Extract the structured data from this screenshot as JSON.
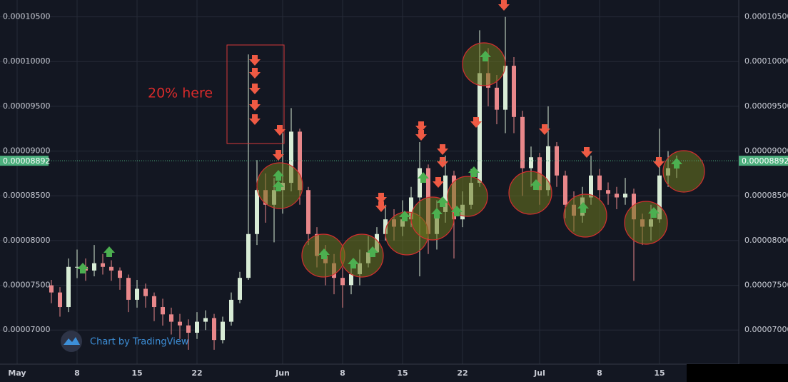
{
  "chart_data": {
    "type": "candlestick",
    "watermark": "Chart by TradingView",
    "annotation": "20% here",
    "x": [
      5,
      6,
      7,
      8,
      9,
      10,
      11,
      12,
      13,
      14,
      15,
      16,
      17,
      18,
      19,
      20,
      21,
      22,
      23,
      24,
      25,
      26,
      27,
      28,
      29,
      30,
      31,
      32,
      33,
      34,
      35,
      36,
      37,
      38,
      39,
      40,
      41,
      42,
      43,
      44,
      45,
      46,
      47,
      48,
      49,
      50,
      51,
      52,
      53,
      54,
      55,
      56,
      57,
      58,
      59,
      60,
      61,
      62,
      63,
      64,
      65,
      66,
      67,
      68,
      69,
      70,
      71,
      72,
      73,
      74,
      75,
      76,
      77,
      78
    ],
    "open": [
      7.5e-05,
      7.42e-05,
      7.257e-05,
      7.706e-05,
      7.706e-05,
      7.665e-05,
      7.747e-05,
      7.706e-05,
      7.665e-05,
      7.583e-05,
      7.338e-05,
      7.461e-05,
      7.379e-05,
      7.257e-05,
      7.175e-05,
      7.093e-05,
      7.052e-05,
      6.97e-05,
      7.093e-05,
      7.134e-05,
      6.889e-05,
      7.093e-05,
      7.338e-05,
      7.583e-05,
      8.073e-05,
      8.564e-05,
      8.4e-05,
      8.564e-05,
      8.645e-05,
      9.217e-05,
      8.564e-05,
      8.073e-05,
      7.828e-05,
      7.747e-05,
      7.583e-05,
      7.502e-05,
      7.624e-05,
      7.747e-05,
      7.869e-05,
      8.073e-05,
      8.237e-05,
      8.155e-05,
      8.237e-05,
      8.482e-05,
      8.809e-05,
      8.073e-05,
      8.319e-05,
      8.727e-05,
      8.237e-05,
      8.4e-05,
      8.645e-05,
      9.871e-05,
      9.708e-05,
      9.462e-05,
      9.953e-05,
      9.381e-05,
      8.809e-05,
      8.931e-05,
      8.564e-05,
      9.054e-05,
      8.727e-05,
      8.4e-05,
      8.278e-05,
      8.482e-05,
      8.727e-05,
      8.564e-05,
      8.523e-05,
      8.482e-05,
      8.523e-05,
      8.237e-05,
      8.155e-05,
      8.237e-05,
      8.727e-05,
      8.809e-05
    ],
    "high": [
      7.56e-05,
      7.48e-05,
      7.8e-05,
      7.9e-05,
      7.8e-05,
      7.95e-05,
      7.85e-05,
      7.78e-05,
      7.7e-05,
      7.62e-05,
      7.56e-05,
      7.52e-05,
      7.42e-05,
      7.35e-05,
      7.25e-05,
      7.18e-05,
      7.12e-05,
      7.2e-05,
      7.22e-05,
      7.18e-05,
      7.15e-05,
      7.42e-05,
      7.65e-05,
      0.0001008,
      8.9e-05,
      8.75e-05,
      8.7e-05,
      9.2e-05,
      9.48e-05,
      9.25e-05,
      8.6e-05,
      8.15e-05,
      7.95e-05,
      7.85e-05,
      7.7e-05,
      7.75e-05,
      7.9e-05,
      8.05e-05,
      8.15e-05,
      8.4e-05,
      8.35e-05,
      8.45e-05,
      8.6e-05,
      9.1e-05,
      8.85e-05,
      8.45e-05,
      8.95e-05,
      8.78e-05,
      8.55e-05,
      8.8e-05,
      0.0001035,
      0.0001015,
      9.85e-05,
      0.000105,
      0.0001005,
      9.45e-05,
      9.05e-05,
      8.98e-05,
      9.5e-05,
      9.1e-05,
      8.78e-05,
      8.55e-05,
      8.6e-05,
      8.95e-05,
      8.8e-05,
      8.65e-05,
      8.6e-05,
      8.7e-05,
      8.58e-05,
      8.3e-05,
      8.4e-05,
      9.25e-05,
      9e-05,
      8.95e-05
    ],
    "low": [
      7.3e-05,
      7.15e-05,
      7.2e-05,
      7.58e-05,
      7.55e-05,
      7.6e-05,
      7.62e-05,
      7.55e-05,
      7.45e-05,
      7.2e-05,
      7.25e-05,
      7.25e-05,
      7.1e-05,
      7.05e-05,
      6.95e-05,
      6.9e-05,
      6.78e-05,
      6.9e-05,
      7e-05,
      6.78e-05,
      6.85e-05,
      7.05e-05,
      7.3e-05,
      7.56e-05,
      7.95e-05,
      8.2e-05,
      7.98e-05,
      8.3e-05,
      8.55e-05,
      8.4e-05,
      7.95e-05,
      7.7e-05,
      7.5e-05,
      7.4e-05,
      7.25e-05,
      7.4e-05,
      7.5e-05,
      7.7e-05,
      7.9e-05,
      8e-05,
      8e-05,
      8.05e-05,
      8.15e-05,
      7.6e-05,
      7.85e-05,
      7.9e-05,
      8.2e-05,
      7.8e-05,
      8.15e-05,
      8.35e-05,
      8.6e-05,
      9.5e-05,
      9.3e-05,
      9.2e-05,
      9.2e-05,
      8.5e-05,
      8.6e-05,
      8.4e-05,
      8.5e-05,
      8.6e-05,
      8.25e-05,
      8.1e-05,
      8.2e-05,
      8.4e-05,
      8.45e-05,
      8.4e-05,
      8.35e-05,
      8.4e-05,
      7.55e-05,
      7.95e-05,
      8e-05,
      8.2e-05,
      8.6e-05,
      8.7e-05
    ],
    "close": [
      7.42e-05,
      7.257e-05,
      7.706e-05,
      7.706e-05,
      7.665e-05,
      7.747e-05,
      7.706e-05,
      7.665e-05,
      7.583e-05,
      7.338e-05,
      7.461e-05,
      7.379e-05,
      7.257e-05,
      7.175e-05,
      7.093e-05,
      7.052e-05,
      6.97e-05,
      7.093e-05,
      7.134e-05,
      6.889e-05,
      7.093e-05,
      7.338e-05,
      7.583e-05,
      8.073e-05,
      8.564e-05,
      8.4e-05,
      8.564e-05,
      8.645e-05,
      9.217e-05,
      8.564e-05,
      8.073e-05,
      7.828e-05,
      7.747e-05,
      7.583e-05,
      7.502e-05,
      7.624e-05,
      7.747e-05,
      7.869e-05,
      8.073e-05,
      8.237e-05,
      8.155e-05,
      8.237e-05,
      8.482e-05,
      8.809e-05,
      8.073e-05,
      8.319e-05,
      8.727e-05,
      8.237e-05,
      8.4e-05,
      8.645e-05,
      9.871e-05,
      9.708e-05,
      9.462e-05,
      9.953e-05,
      9.381e-05,
      8.809e-05,
      8.931e-05,
      8.564e-05,
      9.054e-05,
      8.727e-05,
      8.4e-05,
      8.278e-05,
      8.482e-05,
      8.727e-05,
      8.564e-05,
      8.523e-05,
      8.482e-05,
      8.523e-05,
      8.237e-05,
      8.155e-05,
      8.237e-05,
      8.727e-05,
      8.809e-05,
      8.891e-05
    ],
    "up_color": "#d8ecd6",
    "down_color": "#e8878a",
    "xlim": [
      -1,
      85.25
    ],
    "xticks": [
      {
        "value": 1,
        "label": "May"
      },
      8,
      15,
      22,
      {
        "value": 32,
        "label": "Jun"
      },
      {
        "value": 39,
        "label": "8"
      },
      {
        "value": 46,
        "label": "15"
      },
      {
        "value": 53,
        "label": "22"
      },
      {
        "value": 62,
        "label": "Jul"
      },
      {
        "value": 69,
        "label": "8"
      },
      {
        "value": 76,
        "label": "15"
      }
    ],
    "ylim": [
      6.619e-05,
      0.00010688
    ],
    "yticks": [
      {
        "value": 7e-05,
        "label": "0.00007000"
      },
      {
        "value": 7.5e-05,
        "label": "0.00007500"
      },
      {
        "value": 8e-05,
        "label": "0.00008000"
      },
      {
        "value": 8.5e-05,
        "label": "0.00008500"
      },
      {
        "value": 9e-05,
        "label": "0.00009000"
      },
      {
        "value": 9.5e-05,
        "label": "0.00009500"
      },
      {
        "value": 0.0001,
        "label": "0.00010000"
      },
      {
        "value": 0.000105,
        "label": "0.00010500"
      }
    ],
    "last_price": 8.892e-05,
    "last_price_color": "#4caf7d",
    "grid": true
  }
}
